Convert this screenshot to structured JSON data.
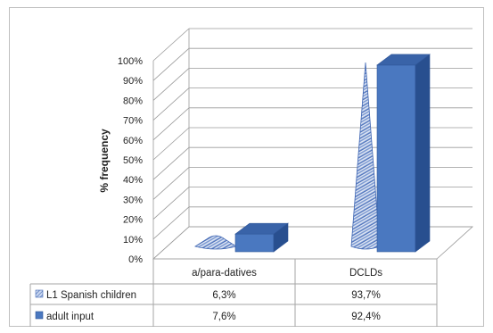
{
  "chart_data": {
    "type": "bar",
    "three_d": true,
    "title": "",
    "ylabel": "% frequency",
    "xlabel": "",
    "ylim": [
      0,
      100
    ],
    "yticks": [
      0,
      10,
      20,
      30,
      40,
      50,
      60,
      70,
      80,
      90,
      100
    ],
    "ytick_labels": [
      "0%",
      "10%",
      "20%",
      "30%",
      "40%",
      "50%",
      "60%",
      "70%",
      "80%",
      "90%",
      "100%"
    ],
    "categories": [
      "a/para-datives",
      "DCLDs"
    ],
    "series": [
      {
        "name": "L1 Spanish children",
        "shape": "cone",
        "color": "#9bb3de",
        "values": [
          6.3,
          93.7
        ],
        "labels": [
          "6,3%",
          "93,7%"
        ]
      },
      {
        "name": "adult input",
        "shape": "box",
        "color": "#4a78c0",
        "values": [
          7.6,
          92.4
        ],
        "labels": [
          "7,6%",
          "92,4%"
        ]
      }
    ],
    "grid": true,
    "legend": "data-table"
  }
}
